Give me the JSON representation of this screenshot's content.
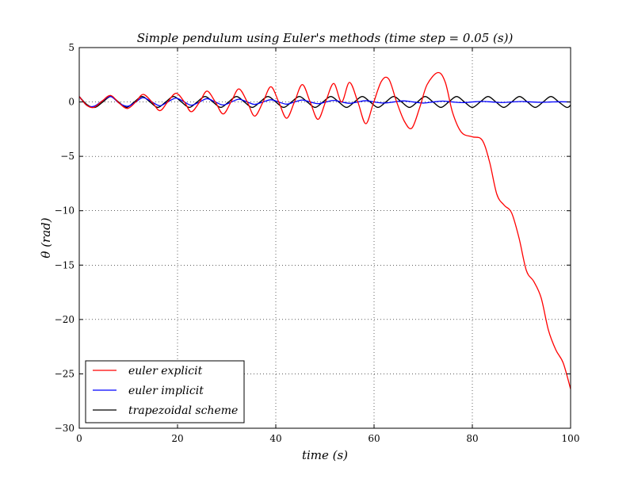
{
  "chart_data": {
    "type": "line",
    "title": "Simple pendulum using Euler's methods (time step = 0.05 (s))",
    "xlabel": "time (s)",
    "ylabel": "θ (rad)",
    "xlim": [
      0,
      100
    ],
    "ylim": [
      -30,
      5
    ],
    "xticks": [
      0,
      20,
      40,
      60,
      80,
      100
    ],
    "yticks": [
      5,
      0,
      -5,
      -10,
      -15,
      -20,
      -25,
      -30
    ],
    "ytick_labels": [
      "5",
      "0",
      "−5",
      "−10",
      "−15",
      "−20",
      "−25",
      "−30"
    ],
    "grid": true,
    "legend_position": "lower-left",
    "series": [
      {
        "name": "euler explicit",
        "color": "#ff0000",
        "points": [
          [
            0,
            0.5
          ],
          [
            1.5,
            -0.3
          ],
          [
            3,
            -0.5
          ],
          [
            4.7,
            0.1
          ],
          [
            6.4,
            0.6
          ],
          [
            8.1,
            -0.1
          ],
          [
            9.8,
            -0.6
          ],
          [
            11.5,
            0.0
          ],
          [
            13,
            0.7
          ],
          [
            14.8,
            0.0
          ],
          [
            16.4,
            -0.8
          ],
          [
            18,
            0.0
          ],
          [
            19.7,
            0.8
          ],
          [
            21.4,
            0.0
          ],
          [
            22.8,
            -0.9
          ],
          [
            24.5,
            0.0
          ],
          [
            26,
            1.0
          ],
          [
            27.7,
            0.0
          ],
          [
            29.3,
            -1.1
          ],
          [
            31,
            0.1
          ],
          [
            32.5,
            1.2
          ],
          [
            34.2,
            0.0
          ],
          [
            35.7,
            -1.3
          ],
          [
            37.4,
            0.0
          ],
          [
            39,
            1.4
          ],
          [
            40.6,
            0.0
          ],
          [
            42.2,
            -1.5
          ],
          [
            43.8,
            0.0
          ],
          [
            45.4,
            1.6
          ],
          [
            47,
            0.0
          ],
          [
            48.6,
            -1.6
          ],
          [
            50.2,
            0.1
          ],
          [
            51.8,
            1.7
          ],
          [
            53.4,
            0.0
          ],
          [
            55,
            1.8
          ],
          [
            56.7,
            0.0
          ],
          [
            58.3,
            -2.0
          ],
          [
            59.8,
            -0.2
          ],
          [
            61.5,
            1.9
          ],
          [
            63,
            2.1
          ],
          [
            64.6,
            0.0
          ],
          [
            66.2,
            -1.8
          ],
          [
            67.7,
            -2.4
          ],
          [
            69.3,
            -0.5
          ],
          [
            70.8,
            1.6
          ],
          [
            73,
            2.7
          ],
          [
            74.5,
            1.8
          ],
          [
            76,
            -1.0
          ],
          [
            77.8,
            -2.8
          ],
          [
            80,
            -3.2
          ],
          [
            82,
            -3.5
          ],
          [
            83.5,
            -5.5
          ],
          [
            85,
            -8.5
          ],
          [
            86.5,
            -9.5
          ],
          [
            88,
            -10.2
          ],
          [
            89.5,
            -12.5
          ],
          [
            91,
            -15.5
          ],
          [
            92.5,
            -16.5
          ],
          [
            94,
            -18.0
          ],
          [
            95.5,
            -21.0
          ],
          [
            97,
            -22.8
          ],
          [
            98.5,
            -24.0
          ],
          [
            100,
            -26.4
          ]
        ]
      },
      {
        "name": "euler implicit",
        "color": "#0000ff",
        "points": [
          [
            0,
            0.5
          ],
          [
            1.5,
            -0.3
          ],
          [
            3,
            -0.4
          ],
          [
            4.7,
            0.1
          ],
          [
            6.4,
            0.5
          ],
          [
            8.1,
            -0.1
          ],
          [
            9.8,
            -0.4
          ],
          [
            11.5,
            0.0
          ],
          [
            13,
            0.4
          ],
          [
            14.8,
            0.0
          ],
          [
            16.4,
            -0.35
          ],
          [
            18,
            0.0
          ],
          [
            19.7,
            0.35
          ],
          [
            21.4,
            0.0
          ],
          [
            22.8,
            -0.3
          ],
          [
            24.5,
            0.0
          ],
          [
            26,
            0.3
          ],
          [
            27.7,
            0.0
          ],
          [
            29.3,
            -0.28
          ],
          [
            31,
            0.0
          ],
          [
            32.5,
            0.25
          ],
          [
            34.2,
            0.0
          ],
          [
            35.7,
            -0.22
          ],
          [
            37.4,
            0.0
          ],
          [
            39,
            0.2
          ],
          [
            40.6,
            0.0
          ],
          [
            42.2,
            -0.2
          ],
          [
            43.8,
            0.0
          ],
          [
            45.4,
            0.18
          ],
          [
            47,
            0.0
          ],
          [
            48.6,
            -0.16
          ],
          [
            50.2,
            0.0
          ],
          [
            51.8,
            0.14
          ],
          [
            53.4,
            0.0
          ],
          [
            55,
            -0.12
          ],
          [
            56.7,
            0.0
          ],
          [
            58.3,
            0.12
          ],
          [
            60,
            0.0
          ],
          [
            62,
            -0.1
          ],
          [
            64,
            0.0
          ],
          [
            66,
            0.1
          ],
          [
            68,
            0.0
          ],
          [
            70,
            -0.1
          ],
          [
            72,
            0.0
          ],
          [
            74,
            0.08
          ],
          [
            76,
            0.0
          ],
          [
            78,
            -0.06
          ],
          [
            80,
            0.0
          ],
          [
            82,
            0.05
          ],
          [
            84,
            0.0
          ],
          [
            86,
            -0.05
          ],
          [
            88,
            0.0
          ],
          [
            90,
            0.04
          ],
          [
            92,
            0.0
          ],
          [
            94,
            -0.03
          ],
          [
            96,
            0.0
          ],
          [
            98,
            0.02
          ],
          [
            100,
            0.0
          ]
        ]
      },
      {
        "name": "trapezoidal scheme",
        "color": "#000000",
        "points": [
          [
            0,
            0.5
          ],
          [
            1.6,
            -0.25
          ],
          [
            3.2,
            -0.5
          ],
          [
            4.8,
            0.0
          ],
          [
            6.4,
            0.5
          ],
          [
            8,
            0.0
          ],
          [
            9.6,
            -0.5
          ],
          [
            11.2,
            0.0
          ],
          [
            12.8,
            0.5
          ],
          [
            14.4,
            0.0
          ],
          [
            16,
            -0.5
          ],
          [
            17.6,
            0.0
          ],
          [
            19.2,
            0.5
          ],
          [
            20.8,
            0.0
          ],
          [
            22.4,
            -0.5
          ],
          [
            24,
            0.0
          ],
          [
            25.6,
            0.5
          ],
          [
            27.2,
            0.0
          ],
          [
            28.8,
            -0.5
          ],
          [
            30.4,
            0.0
          ],
          [
            32,
            0.5
          ],
          [
            33.6,
            0.0
          ],
          [
            35.2,
            -0.5
          ],
          [
            36.8,
            0.0
          ],
          [
            38.4,
            0.5
          ],
          [
            40,
            0.0
          ],
          [
            41.6,
            -0.5
          ],
          [
            43.2,
            0.0
          ],
          [
            44.8,
            0.5
          ],
          [
            46.4,
            0.0
          ],
          [
            48,
            -0.5
          ],
          [
            49.6,
            0.0
          ],
          [
            51.2,
            0.5
          ],
          [
            52.8,
            0.0
          ],
          [
            54.4,
            -0.5
          ],
          [
            56,
            0.0
          ],
          [
            57.6,
            0.5
          ],
          [
            59.2,
            0.0
          ],
          [
            60.8,
            -0.5
          ],
          [
            62.4,
            0.0
          ],
          [
            64,
            0.5
          ],
          [
            65.6,
            0.0
          ],
          [
            67.2,
            -0.5
          ],
          [
            68.8,
            0.0
          ],
          [
            70.4,
            0.5
          ],
          [
            72,
            0.0
          ],
          [
            73.6,
            -0.5
          ],
          [
            75.2,
            0.0
          ],
          [
            76.8,
            0.5
          ],
          [
            78.4,
            0.0
          ],
          [
            80,
            -0.5
          ],
          [
            81.6,
            0.0
          ],
          [
            83.2,
            0.5
          ],
          [
            84.8,
            0.0
          ],
          [
            86.4,
            -0.5
          ],
          [
            88,
            0.0
          ],
          [
            89.6,
            0.5
          ],
          [
            91.2,
            0.0
          ],
          [
            92.8,
            -0.5
          ],
          [
            94.4,
            0.0
          ],
          [
            96,
            0.5
          ],
          [
            97.6,
            0.0
          ],
          [
            99.2,
            -0.5
          ],
          [
            100,
            -0.3
          ]
        ]
      }
    ]
  }
}
